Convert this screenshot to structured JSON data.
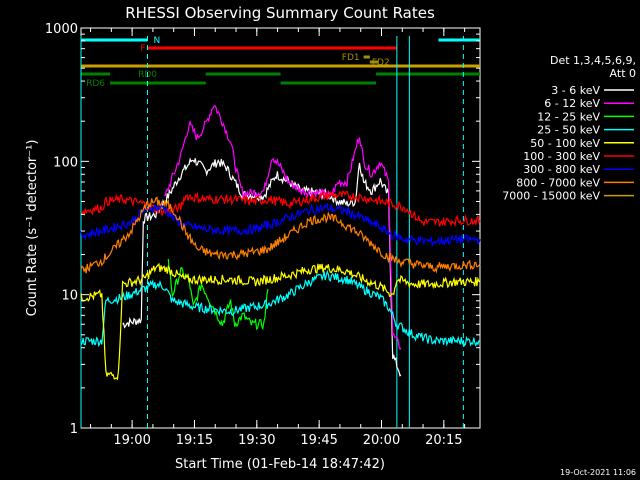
{
  "chart_data": {
    "type": "line",
    "title": "RHESSI Observing Summary Count Rates",
    "xlabel": "Start Time (01-Feb-14 18:47:42)",
    "ylabel": "Count Rate (s⁻¹ detector⁻¹)",
    "yscale": "log",
    "ylim": [
      1,
      1000
    ],
    "x_unit": "minutes after 18:47:42",
    "xlim": [
      0,
      96
    ],
    "x_ticks": [
      {
        "t": 12.3,
        "label": "19:00"
      },
      {
        "t": 27.3,
        "label": "19:15"
      },
      {
        "t": 42.3,
        "label": "19:30"
      },
      {
        "t": 57.3,
        "label": "19:45"
      },
      {
        "t": 72.3,
        "label": "20:00"
      },
      {
        "t": 87.3,
        "label": "20:15"
      }
    ],
    "y_ticks": [
      {
        "v": 1,
        "label": "1"
      },
      {
        "v": 10,
        "label": "10"
      },
      {
        "v": 100,
        "label": "100"
      },
      {
        "v": 1000,
        "label": "1000"
      }
    ],
    "legend": {
      "position": "right",
      "header": [
        "Det 1,3,4,5,6,9,",
        "Att 0"
      ]
    },
    "series": [
      {
        "name": "3 - 6 keV",
        "color": "#ffffff",
        "points": [
          [
            10,
            6
          ],
          [
            14.5,
            6.5
          ],
          [
            15,
            37
          ],
          [
            18,
            40
          ],
          [
            21,
            55
          ],
          [
            24,
            80
          ],
          [
            27,
            105
          ],
          [
            30,
            85
          ],
          [
            33,
            100
          ],
          [
            35,
            90
          ],
          [
            37,
            70
          ],
          [
            39,
            56
          ],
          [
            41,
            56
          ],
          [
            44,
            55
          ],
          [
            47,
            80
          ],
          [
            50,
            70
          ],
          [
            53,
            60
          ],
          [
            57,
            58
          ],
          [
            60,
            55
          ],
          [
            62,
            50
          ],
          [
            64,
            48
          ],
          [
            66,
            50
          ],
          [
            67,
            100
          ],
          [
            68,
            70
          ],
          [
            70,
            60
          ],
          [
            72,
            72
          ],
          [
            74,
            55
          ],
          [
            75,
            3.5
          ],
          [
            77,
            2.5
          ]
        ]
      },
      {
        "name": "6 - 12 keV",
        "color": "#ff00ff",
        "points": [
          [
            20,
            52
          ],
          [
            24,
            110
          ],
          [
            26,
            190
          ],
          [
            28,
            150
          ],
          [
            30,
            190
          ],
          [
            32,
            270
          ],
          [
            34,
            200
          ],
          [
            36,
            140
          ],
          [
            38,
            70
          ],
          [
            39,
            57
          ],
          [
            41,
            58
          ],
          [
            44,
            60
          ],
          [
            46,
            110
          ],
          [
            48,
            90
          ],
          [
            50,
            70
          ],
          [
            53,
            60
          ],
          [
            57,
            58
          ],
          [
            60,
            55
          ],
          [
            62,
            70
          ],
          [
            64,
            70
          ],
          [
            66,
            120
          ],
          [
            67,
            160
          ],
          [
            68,
            100
          ],
          [
            70,
            80
          ],
          [
            72,
            100
          ],
          [
            74,
            70
          ],
          [
            75,
            5
          ],
          [
            77,
            4
          ]
        ]
      },
      {
        "name": "12 - 25 keV",
        "color": "#00ff00",
        "points": [
          [
            21,
            18
          ],
          [
            22,
            10
          ],
          [
            24,
            15
          ],
          [
            26,
            13
          ],
          [
            27,
            8
          ],
          [
            29,
            12
          ],
          [
            31,
            9
          ],
          [
            34,
            6
          ],
          [
            36,
            9
          ],
          [
            37,
            6
          ],
          [
            39,
            7
          ],
          [
            41,
            6
          ],
          [
            44,
            6
          ],
          [
            45,
            11
          ]
        ]
      },
      {
        "name": "25 - 50 keV",
        "color": "#00ffff",
        "points": [
          [
            0,
            4.5
          ],
          [
            5,
            4.5
          ],
          [
            6,
            9
          ],
          [
            10,
            9.5
          ],
          [
            15,
            11
          ],
          [
            18,
            12
          ],
          [
            20,
            11.5
          ],
          [
            22,
            9
          ],
          [
            28,
            8
          ],
          [
            36,
            7.5
          ],
          [
            45,
            8.5
          ],
          [
            50,
            10
          ],
          [
            55,
            12.5
          ],
          [
            59,
            14
          ],
          [
            64,
            13
          ],
          [
            68,
            11
          ],
          [
            72,
            9.5
          ],
          [
            74,
            8
          ],
          [
            76,
            6
          ],
          [
            80,
            5
          ],
          [
            85,
            4.5
          ],
          [
            90,
            4.5
          ],
          [
            96,
            4.5
          ]
        ]
      },
      {
        "name": "50 - 100 keV",
        "color": "#ffff00",
        "points": [
          [
            0,
            9.5
          ],
          [
            5,
            10
          ],
          [
            6,
            2.5
          ],
          [
            9,
            2.5
          ],
          [
            10,
            12
          ],
          [
            15,
            13
          ],
          [
            18,
            16
          ],
          [
            21,
            15.5
          ],
          [
            25,
            13
          ],
          [
            30,
            13
          ],
          [
            36,
            13
          ],
          [
            42,
            12.5
          ],
          [
            45,
            13
          ],
          [
            50,
            14
          ],
          [
            55,
            15.5
          ],
          [
            59,
            16
          ],
          [
            64,
            15
          ],
          [
            68,
            13
          ],
          [
            72,
            11.5
          ],
          [
            75,
            10
          ],
          [
            76,
            13
          ],
          [
            80,
            12
          ],
          [
            85,
            12
          ],
          [
            90,
            12.5
          ],
          [
            96,
            12.5
          ]
        ]
      },
      {
        "name": "100 - 300 keV",
        "color": "#ff0000",
        "points": [
          [
            0,
            42
          ],
          [
            5,
            45
          ],
          [
            6,
            50
          ],
          [
            10,
            52
          ],
          [
            15,
            48
          ],
          [
            17,
            45
          ],
          [
            20,
            42
          ],
          [
            24,
            45
          ],
          [
            25,
            55
          ],
          [
            30,
            52
          ],
          [
            36,
            52
          ],
          [
            42,
            50
          ],
          [
            45,
            52
          ],
          [
            50,
            48
          ],
          [
            55,
            52
          ],
          [
            60,
            56
          ],
          [
            65,
            55
          ],
          [
            70,
            52
          ],
          [
            72,
            50
          ],
          [
            75,
            48
          ],
          [
            78,
            45
          ],
          [
            82,
            35
          ],
          [
            86,
            35
          ],
          [
            90,
            36
          ],
          [
            96,
            36
          ]
        ]
      },
      {
        "name": "300 - 800 keV",
        "color": "#0000ff",
        "points": [
          [
            0,
            28
          ],
          [
            5,
            30
          ],
          [
            8,
            32
          ],
          [
            12,
            35
          ],
          [
            16,
            45
          ],
          [
            20,
            45
          ],
          [
            22,
            38
          ],
          [
            25,
            33
          ],
          [
            30,
            31
          ],
          [
            36,
            30
          ],
          [
            42,
            31
          ],
          [
            46,
            34
          ],
          [
            50,
            38
          ],
          [
            55,
            43
          ],
          [
            59,
            45
          ],
          [
            64,
            42
          ],
          [
            68,
            37
          ],
          [
            72,
            32
          ],
          [
            75,
            28
          ],
          [
            78,
            26
          ],
          [
            85,
            25
          ],
          [
            90,
            26
          ],
          [
            96,
            26
          ]
        ]
      },
      {
        "name": "800 - 7000 keV",
        "color": "#ff8000",
        "points": [
          [
            0,
            15
          ],
          [
            5,
            18
          ],
          [
            8,
            22
          ],
          [
            12,
            30
          ],
          [
            16,
            48
          ],
          [
            18,
            50
          ],
          [
            21,
            47
          ],
          [
            23,
            40
          ],
          [
            25,
            30
          ],
          [
            28,
            22
          ],
          [
            32,
            20
          ],
          [
            38,
            20
          ],
          [
            42,
            21
          ],
          [
            45,
            22
          ],
          [
            50,
            28
          ],
          [
            55,
            36
          ],
          [
            59,
            38
          ],
          [
            62,
            36
          ],
          [
            66,
            30
          ],
          [
            70,
            24
          ],
          [
            73,
            20
          ],
          [
            76,
            18
          ],
          [
            80,
            17
          ],
          [
            85,
            16
          ],
          [
            90,
            16.5
          ],
          [
            96,
            17
          ]
        ]
      },
      {
        "name": "7000 - 15000 keV",
        "color": "#c8a000",
        "points": []
      }
    ],
    "annotations": [
      {
        "label": "N",
        "color": "#00ffff",
        "row": 40,
        "segments": [
          [
            0,
            16
          ],
          [
            86,
            96
          ]
        ]
      },
      {
        "label": "F",
        "color": "#ff0000",
        "row": 48,
        "segments": [
          [
            16,
            76
          ]
        ]
      },
      {
        "label": "FD1",
        "color": "#a09000",
        "row": 57,
        "segments": [
          [
            68,
            69.5
          ]
        ]
      },
      {
        "label": "FD2",
        "color": "#a09000",
        "row": 62,
        "segments": [
          [
            69.5,
            71.5
          ]
        ]
      },
      {
        "label": "",
        "color": "#c8a000",
        "row": 66,
        "segments": [
          [
            0,
            96
          ]
        ]
      },
      {
        "label": "RD0",
        "color": "#008000",
        "row": 74,
        "segments": [
          [
            0,
            7
          ],
          [
            30,
            48
          ],
          [
            71,
            96
          ]
        ]
      },
      {
        "label": "RD6",
        "color": "#008000",
        "row": 83,
        "segments": [
          [
            7,
            30
          ],
          [
            48,
            71
          ]
        ]
      }
    ],
    "markers_solid": [
      0,
      76,
      79
    ],
    "markers_dashed": [
      16,
      92
    ],
    "timestamp": "19-Oct-2021 11:06"
  }
}
